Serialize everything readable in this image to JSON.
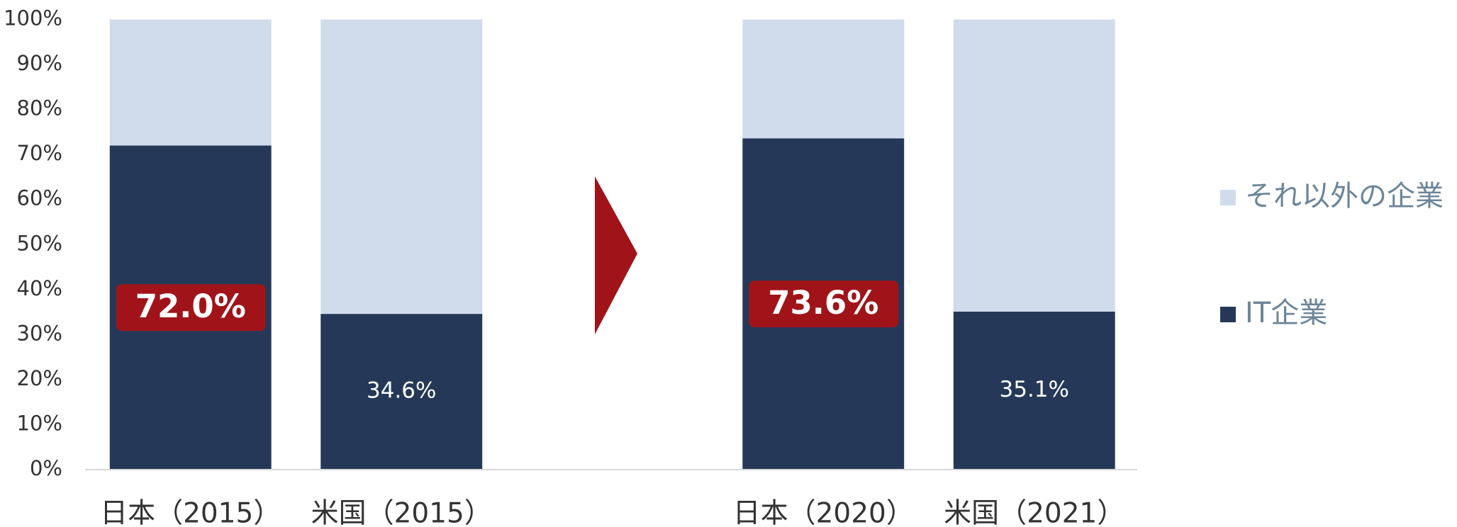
{
  "chart_data": {
    "type": "stacked_bar",
    "categories": [
      "日本（2015）",
      "米国（2015）",
      null,
      "日本（2020）",
      "米国（2021）"
    ],
    "series": [
      {
        "name": "IT企業",
        "color": "#253858",
        "values": [
          72.0,
          34.6,
          null,
          73.6,
          35.1
        ],
        "value_labels": [
          "72.0%",
          "34.6%",
          null,
          "73.6%",
          "35.1%"
        ],
        "highlighted": [
          true,
          false,
          null,
          true,
          false
        ]
      },
      {
        "name": "それ以外の企業",
        "color": "#d0dbec",
        "values": [
          28.0,
          65.4,
          null,
          26.4,
          64.9
        ]
      }
    ],
    "highlight_color": "#a01419",
    "ylim": [
      0,
      100
    ],
    "yticks": [
      {
        "value": 0,
        "label": "0%"
      },
      {
        "value": 10,
        "label": "10%"
      },
      {
        "value": 20,
        "label": "20%"
      },
      {
        "value": 30,
        "label": "30%"
      },
      {
        "value": 40,
        "label": "40%"
      },
      {
        "value": 50,
        "label": "50%"
      },
      {
        "value": 60,
        "label": "60%"
      },
      {
        "value": 70,
        "label": "70%"
      },
      {
        "value": 80,
        "label": "80%"
      },
      {
        "value": 90,
        "label": "90%"
      },
      {
        "value": 100,
        "label": "100%"
      }
    ],
    "grid": false,
    "legend": "right"
  }
}
